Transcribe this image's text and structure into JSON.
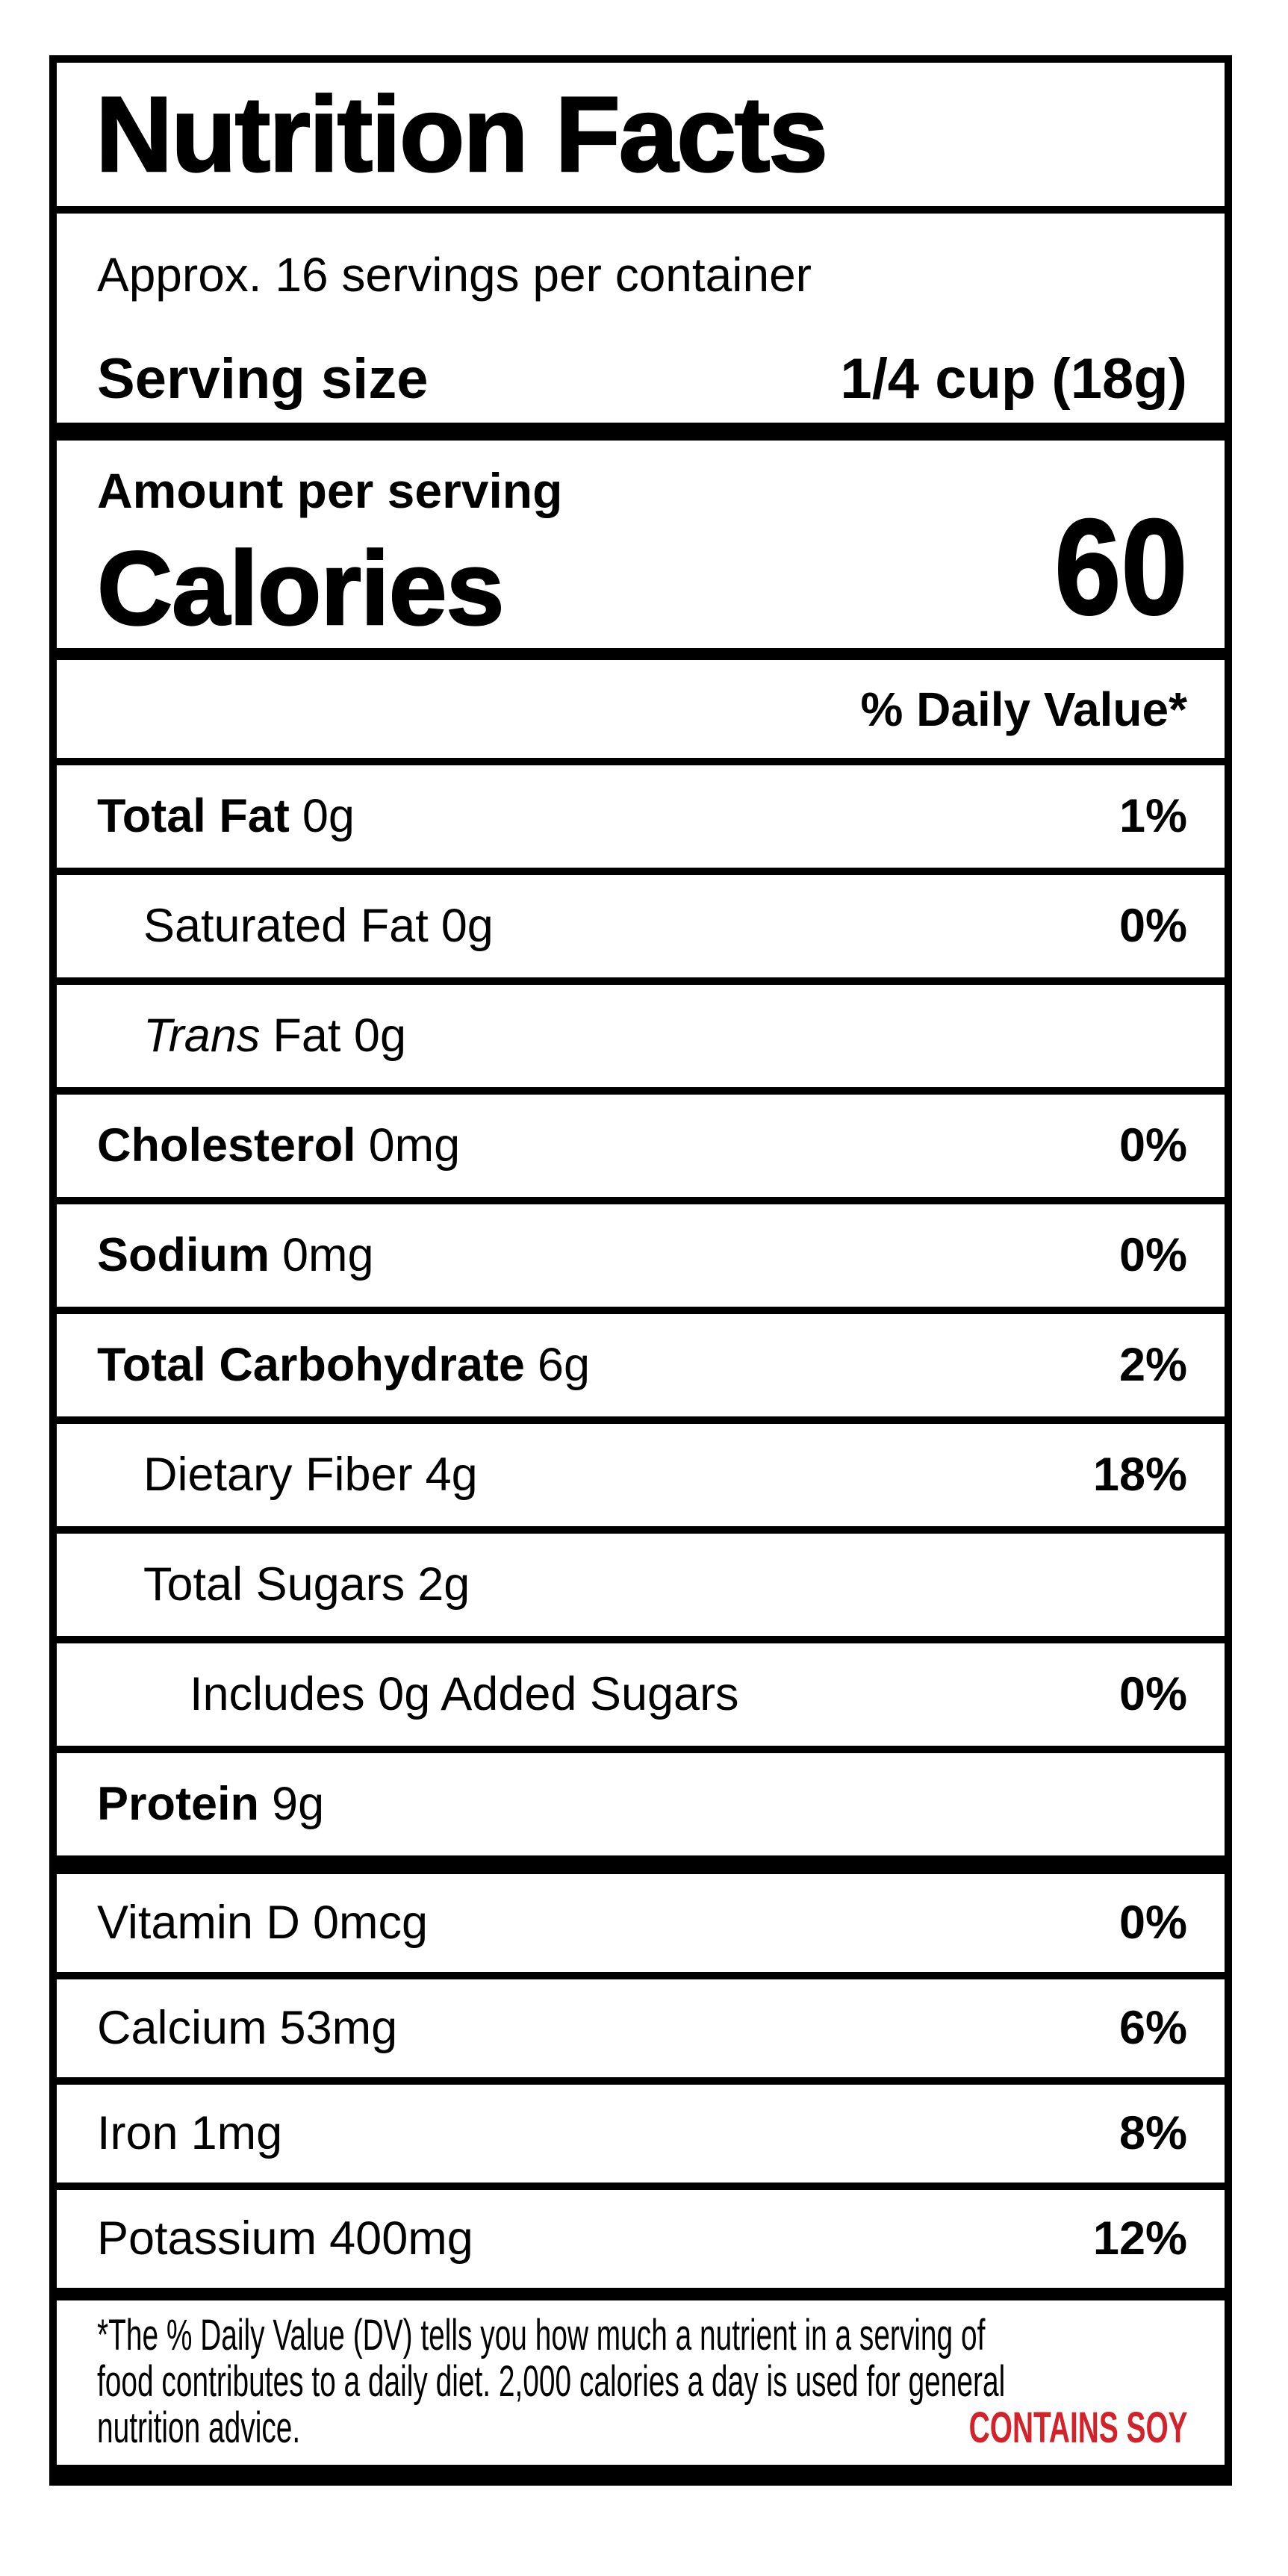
{
  "label": {
    "title": "Nutrition Facts",
    "servings_per_container": "Approx. 16 servings per container",
    "serving_size_label": "Serving size",
    "serving_size_value": "1/4 cup (18g)",
    "amount_per_serving": "Amount per serving",
    "calories_label": "Calories",
    "calories_value": "60",
    "daily_value_header": "% Daily Value*",
    "rows": [
      {
        "name": "Total Fat",
        "amount": "0g",
        "dv": "1%"
      },
      {
        "name": "Saturated Fat",
        "amount": "0g",
        "dv": "0%"
      },
      {
        "name_italic": "Trans",
        "rest": "Fat 0g",
        "dv": ""
      },
      {
        "name": "Cholesterol",
        "amount": "0mg",
        "dv": "0%"
      },
      {
        "name": "Sodium",
        "amount": "0mg",
        "dv": "0%"
      },
      {
        "name": "Total Carbohydrate",
        "amount": "6g",
        "dv": "2%"
      },
      {
        "name": "Dietary Fiber",
        "amount": "4g",
        "dv": "18%"
      },
      {
        "name": "Total Sugars",
        "amount": "2g",
        "dv": ""
      },
      {
        "text": "Includes 0g Added Sugars",
        "dv": "0%"
      },
      {
        "name": "Protein",
        "amount": "9g",
        "dv": ""
      }
    ],
    "vitamins": [
      {
        "name": "Vitamin D",
        "amount": "0mcg",
        "dv": "0%"
      },
      {
        "name": "Calcium",
        "amount": "53mg",
        "dv": "6%"
      },
      {
        "name": "Iron",
        "amount": "1mg",
        "dv": "8%"
      },
      {
        "name": "Potassium",
        "amount": "400mg",
        "dv": "12%"
      }
    ],
    "footnote_lines": [
      "*The % Daily Value (DV) tells you how much a nutrient in a serving of",
      "food contributes to a daily diet. 2,000 calories a day is used for general",
      "nutrition advice."
    ],
    "contains": "CONTAINS SOY",
    "contains_color": "#d2232a"
  }
}
